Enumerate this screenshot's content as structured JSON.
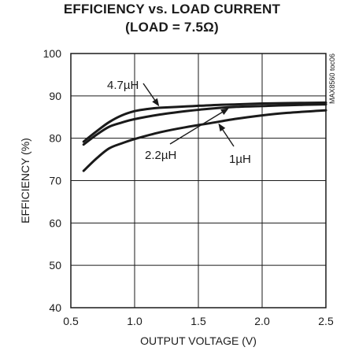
{
  "chart_data": {
    "type": "line",
    "title": "EFFICIENCY vs. LOAD CURRENT",
    "subtitle": "(LOAD = 7.5Ω)",
    "xlabel": "OUTPUT VOLTAGE (V)",
    "ylabel": "EFFICIENCY (%)",
    "xlim": [
      0.5,
      2.5
    ],
    "ylim": [
      40,
      100
    ],
    "xticks": [
      "0.5",
      "1.0",
      "1.5",
      "2.0",
      "2.5"
    ],
    "yticks": [
      "40",
      "50",
      "60",
      "70",
      "80",
      "90",
      "100"
    ],
    "grid": true,
    "side_label": "MAX8560 toc06",
    "series": [
      {
        "name": "4.7µH",
        "color": "#1a1a1a",
        "x": [
          0.6,
          0.7,
          0.8,
          0.9,
          1.0,
          1.1,
          1.2,
          1.4,
          1.6,
          1.8,
          2.0,
          2.2,
          2.5
        ],
        "y": [
          79.2,
          81.6,
          83.8,
          85.4,
          86.4,
          86.9,
          87.2,
          87.5,
          87.8,
          88.0,
          88.2,
          88.3,
          88.4
        ]
      },
      {
        "name": "2.2µH",
        "color": "#1a1a1a",
        "x": [
          0.6,
          0.7,
          0.8,
          0.9,
          1.0,
          1.2,
          1.4,
          1.6,
          1.8,
          2.0,
          2.2,
          2.5
        ],
        "y": [
          78.5,
          80.8,
          82.7,
          83.7,
          84.5,
          85.6,
          86.4,
          87.0,
          87.4,
          87.6,
          87.8,
          88.0
        ]
      },
      {
        "name": "1µH",
        "color": "#1a1a1a",
        "x": [
          0.6,
          0.7,
          0.8,
          0.9,
          1.0,
          1.2,
          1.4,
          1.6,
          1.8,
          2.0,
          2.2,
          2.5
        ],
        "y": [
          72.3,
          75.2,
          77.6,
          78.8,
          79.8,
          81.4,
          82.6,
          83.6,
          84.6,
          85.4,
          86.0,
          86.6
        ]
      }
    ],
    "annotations": [
      {
        "text": "4.7µH",
        "series": 0,
        "anchor_x": 1.2
      },
      {
        "text": "2.2µH",
        "series": 1,
        "anchor_x": 1.75
      },
      {
        "text": "1µH",
        "series": 2,
        "anchor_x": 1.65
      }
    ]
  }
}
